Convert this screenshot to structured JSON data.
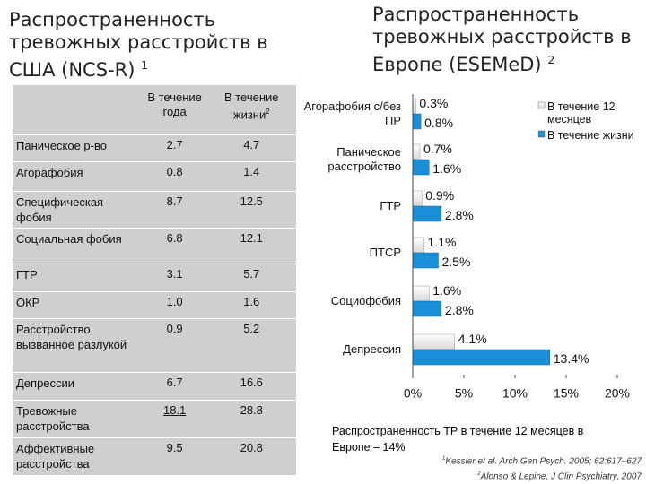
{
  "left_title": {
    "text": "Распространенность тревожных расстройств в США (NCS-R)",
    "sup": "1"
  },
  "right_title": {
    "text": "Распространенность тревожных  расстройств в Европе (ESEMeD)",
    "sup": "2"
  },
  "table": {
    "header": [
      "В течение года",
      "В течение жизни"
    ],
    "header_sup": "2",
    "rows": [
      [
        "Паническое р-во",
        "2.7",
        "4.7"
      ],
      [
        "Агорафобия",
        "0.8",
        "1.4"
      ],
      [
        "Специфическая фобия",
        "8.7",
        "12.5"
      ],
      [
        "Социальная фобия",
        "6.8",
        "12.1"
      ],
      [
        "ГТР",
        "3.1",
        "5.7"
      ],
      [
        "ОКР",
        "1.0",
        "1.6"
      ],
      [
        "Расстройство, вызванное разлукой",
        "0.9",
        "5.2"
      ],
      [
        "Депрессии",
        "6.7",
        "16.6"
      ],
      [
        "Тревожные расстройства",
        "18.1",
        "28.8"
      ],
      [
        "Аффективные расстройства",
        "9.5",
        "20.8"
      ]
    ]
  },
  "chart_data": {
    "type": "hbar",
    "categories": [
      "Агорафобия с/без ПР",
      "Паническое расстройство",
      "ГТР",
      "ПТСР",
      "Социофобия",
      "Депрессия"
    ],
    "series": [
      {
        "name": "В течение 12 месяцев",
        "color": "#d8d8d8",
        "values": [
          0.3,
          0.7,
          0.9,
          1.1,
          1.6,
          4.1
        ],
        "value_labels": [
          "0.3%",
          "0.7%",
          "0.9%",
          "1.1%",
          "1.6%",
          "4.1%"
        ]
      },
      {
        "name": "В течение жизни",
        "color": "#1a8fd8",
        "values": [
          0.8,
          1.6,
          2.8,
          2.5,
          2.8,
          13.4
        ],
        "value_labels": [
          "0.8%",
          "1.6%",
          "2.8%",
          "2.5%",
          "2.8%",
          "13.4%"
        ]
      }
    ],
    "xlim": [
      0,
      20
    ],
    "xticks": [
      {
        "value": 0,
        "label": "0%"
      },
      {
        "value": 5,
        "label": "5%"
      },
      {
        "value": 10,
        "label": "10%"
      },
      {
        "value": 15,
        "label": "15%"
      },
      {
        "value": 20,
        "label": "20%"
      }
    ],
    "legend": "top-right"
  },
  "footnote": "Распространенность ТР в течение 12 месяцев в Европе – 14%",
  "references": [
    {
      "sup": "1",
      "text": "Kessler et al. Arch Gen Psych. 2005; 62:617–627"
    },
    {
      "sup": "2",
      "text": "Alonso & Lepine, J Clin Psychiatry, 2007"
    }
  ]
}
